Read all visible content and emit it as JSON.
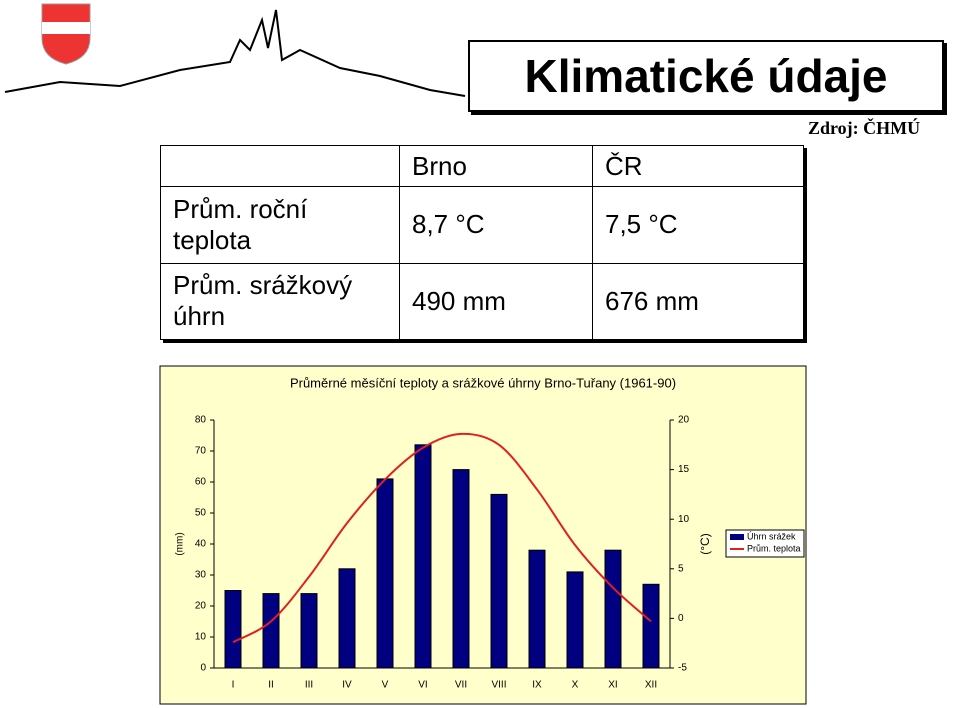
{
  "title": "Klimatické údaje",
  "source": "Zdroj: ČHMÚ",
  "table": {
    "header": [
      "Brno",
      "ČR"
    ],
    "rows": [
      [
        "Prům. roční teplota",
        "8,7 °C",
        "7,5 °C"
      ],
      [
        "Prům. srážkový úhrn",
        "490 mm",
        "676 mm"
      ]
    ]
  },
  "chart_data": {
    "type": "bar-line",
    "title": "Průměrné měsíční teploty a srážkové úhrny Brno-Tuřany (1961-90)",
    "categories": [
      "I",
      "II",
      "III",
      "IV",
      "V",
      "VI",
      "VII",
      "VIII",
      "IX",
      "X",
      "XI",
      "XII"
    ],
    "series": [
      {
        "name": "Úhrn srážek",
        "type": "bar",
        "color": "#000080",
        "values": [
          25,
          24,
          24,
          32,
          61,
          72,
          64,
          56,
          38,
          31,
          38,
          27
        ]
      },
      {
        "name": "Prům. teplota",
        "type": "line",
        "axis": "y2",
        "color": "#e02020",
        "values": [
          -2.4,
          -0.3,
          4.2,
          9.6,
          14,
          17.2,
          18.6,
          17.5,
          13,
          7.4,
          3.1,
          -0.3
        ]
      }
    ],
    "ylabel": "(mm)",
    "y2label": "(°C)",
    "ylim": [
      0,
      80
    ],
    "yticks": [
      0,
      10,
      20,
      30,
      40,
      50,
      60,
      70,
      80
    ],
    "y2lim": [
      -5,
      20
    ],
    "y2ticks": [
      -5,
      0,
      5,
      10,
      15,
      20
    ],
    "legend": "right"
  }
}
